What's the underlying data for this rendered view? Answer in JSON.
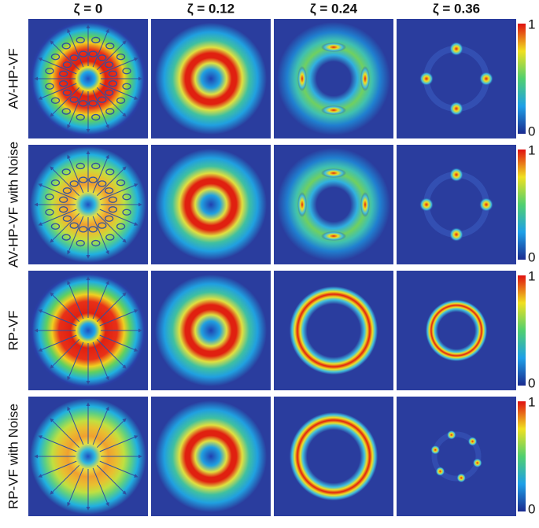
{
  "columns": [
    "ζ = 0",
    "ζ = 0.12",
    "ζ = 0.24",
    "ζ = 0.36"
  ],
  "rows": [
    {
      "label": "AV-HP-VF",
      "colorbar": {
        "ticks": [
          0,
          1
        ]
      }
    },
    {
      "label": "AV-HP-VF with Noise",
      "colorbar": {
        "ticks": [
          0,
          1
        ]
      }
    },
    {
      "label": "RP-VF",
      "colorbar": {
        "ticks": [
          0,
          1
        ]
      }
    },
    {
      "label": "RP-VF with Noise",
      "colorbar": {
        "ticks": [
          0,
          1
        ]
      }
    }
  ]
}
